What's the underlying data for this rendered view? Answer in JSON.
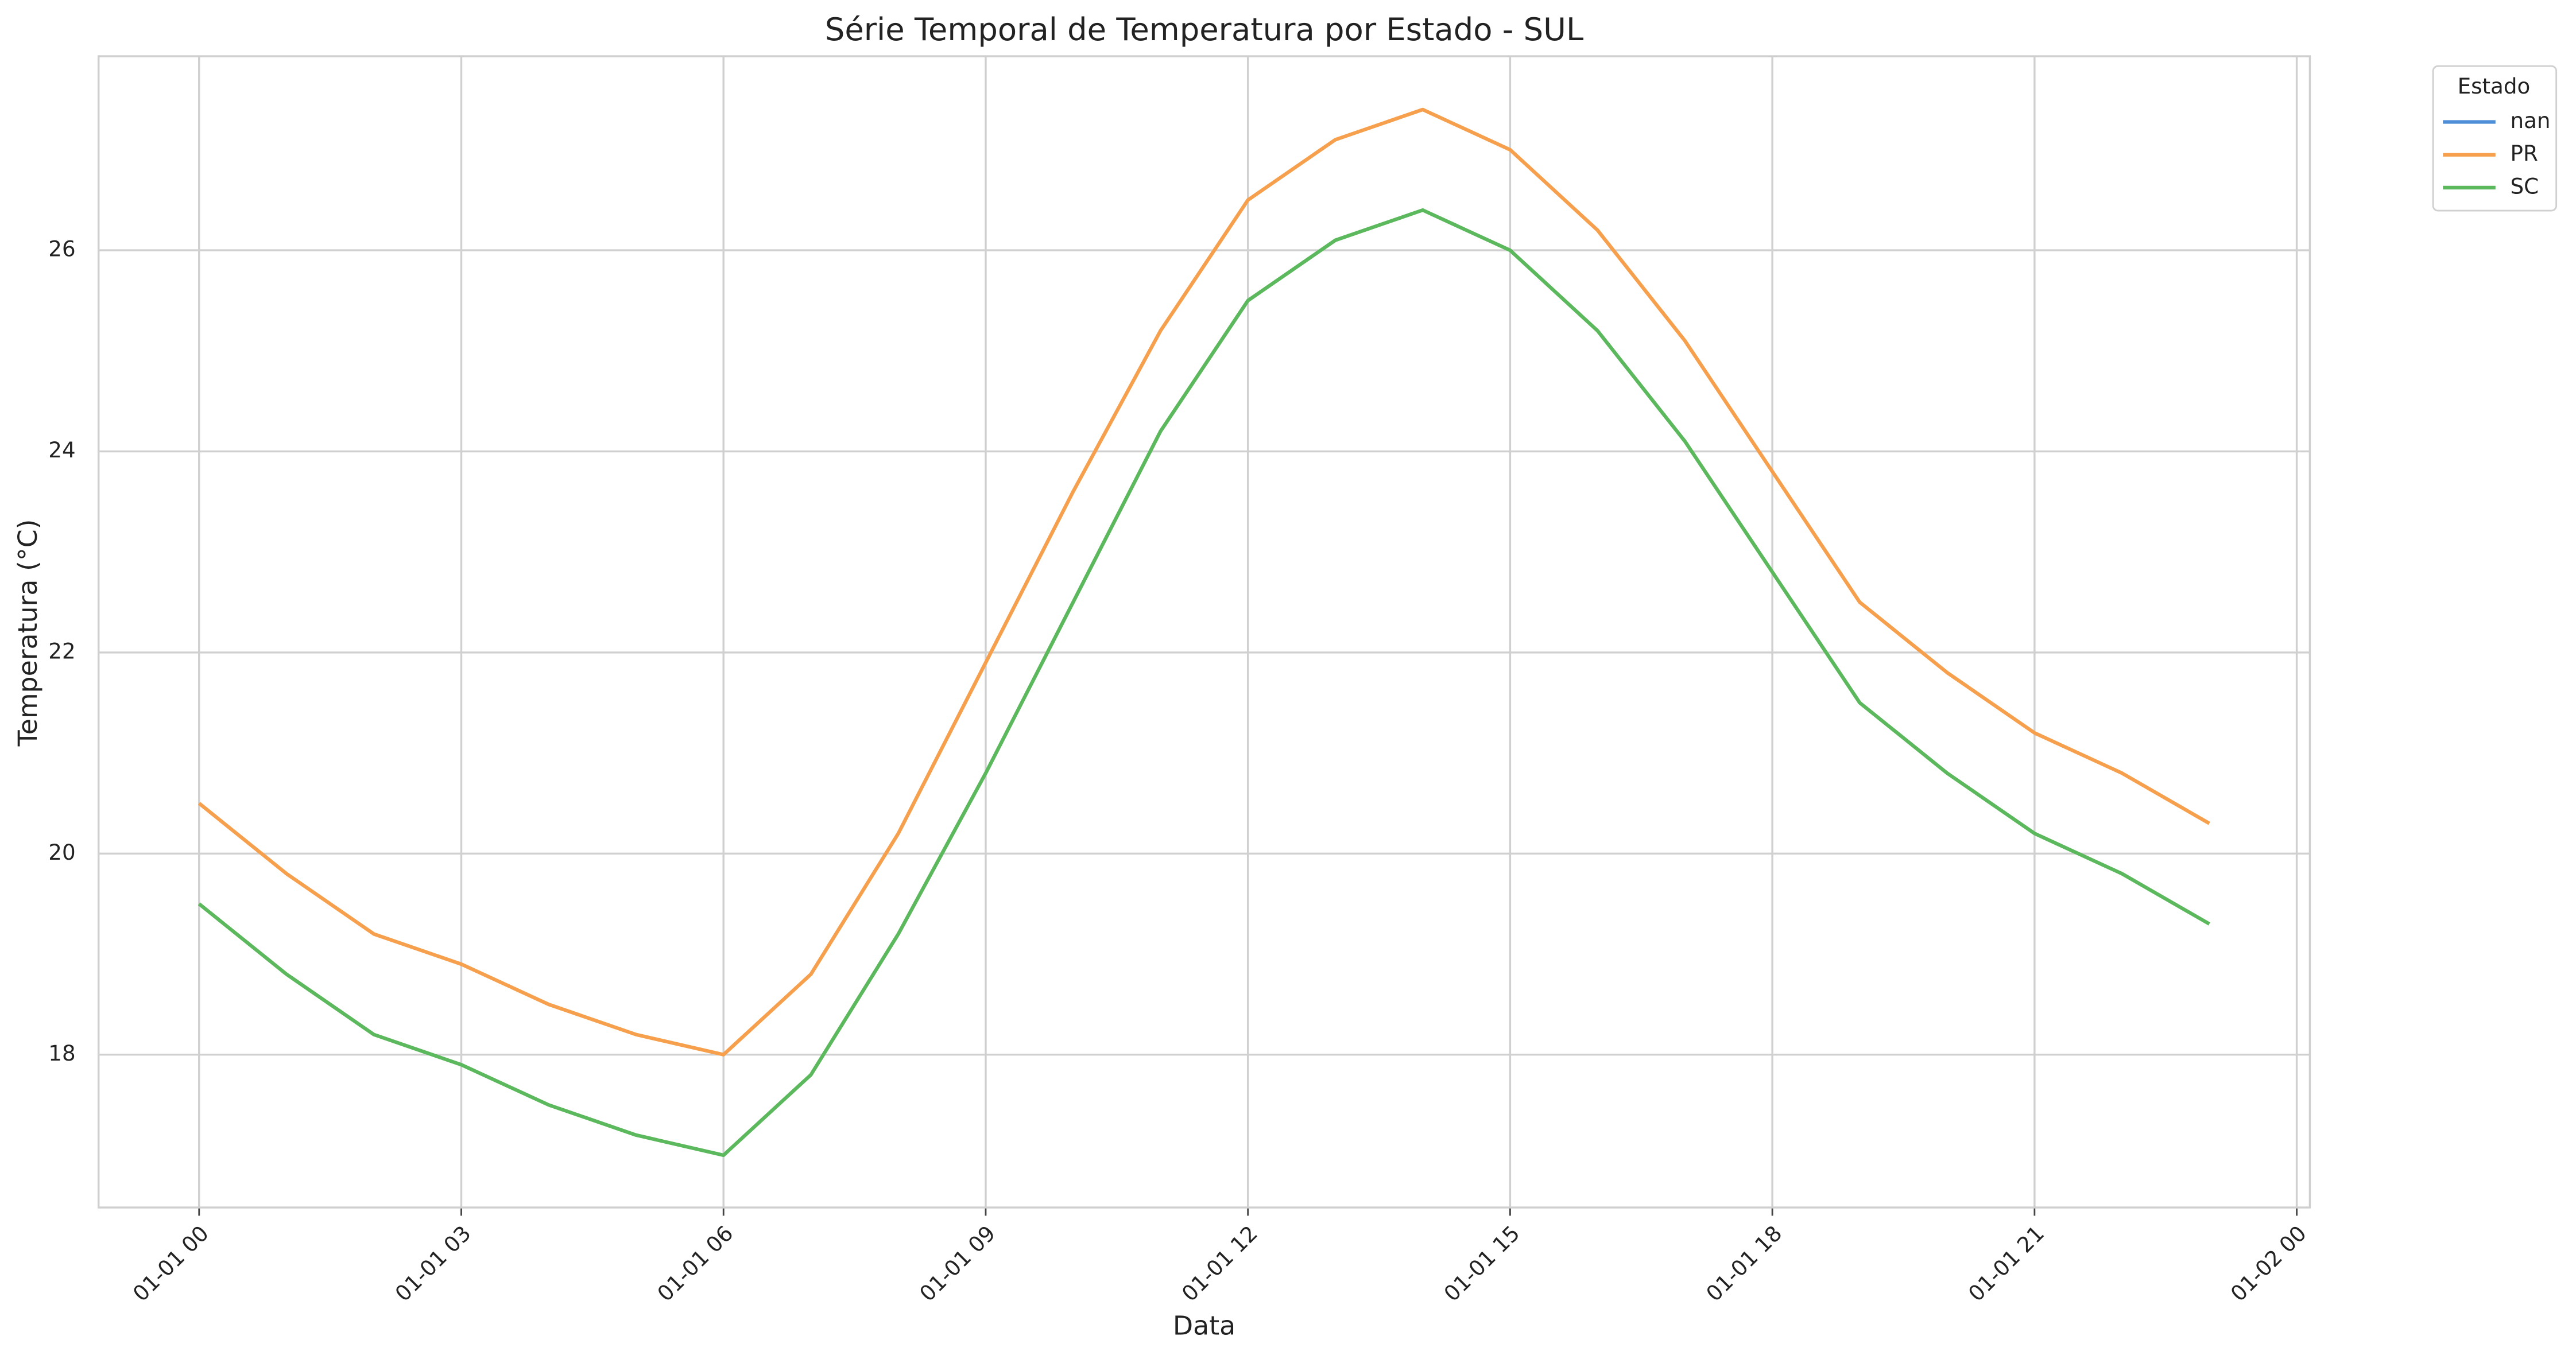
{
  "chart_data": {
    "type": "line",
    "title": "Série Temporal de Temperatura por Estado - SUL",
    "x_label": "Data",
    "y_label": "Temperatura (°C)",
    "legend_title": "Estado",
    "legend": "upper right outside",
    "x": [
      "01-01 00",
      "01-01 01",
      "01-01 02",
      "01-01 03",
      "01-01 04",
      "01-01 05",
      "01-01 06",
      "01-01 07",
      "01-01 08",
      "01-01 09",
      "01-01 10",
      "01-01 11",
      "01-01 12",
      "01-01 13",
      "01-01 14",
      "01-01 15",
      "01-01 16",
      "01-01 17",
      "01-01 18",
      "01-01 19",
      "01-01 20",
      "01-01 21",
      "01-01 22",
      "01-01 23"
    ],
    "series": [
      {
        "name": "nan",
        "color": "#4f8fd8",
        "values": [
          null,
          null,
          null,
          null,
          null,
          null,
          null,
          null,
          null,
          null,
          null,
          null,
          null,
          null,
          null,
          null,
          null,
          null,
          null,
          null,
          null,
          null,
          null,
          null
        ]
      },
      {
        "name": "PR",
        "color": "#f6a04d",
        "values": [
          20.5,
          19.8,
          19.2,
          18.9,
          18.5,
          18.2,
          18.0,
          18.8,
          20.2,
          21.9,
          23.6,
          25.2,
          26.5,
          27.1,
          27.4,
          27.0,
          26.2,
          25.1,
          23.8,
          22.5,
          21.8,
          21.2,
          20.8,
          20.3
        ]
      },
      {
        "name": "SC",
        "color": "#5cb85c",
        "values": [
          19.5,
          18.8,
          18.2,
          17.9,
          17.5,
          17.2,
          17.0,
          17.8,
          19.2,
          20.8,
          22.5,
          24.2,
          25.5,
          26.1,
          26.4,
          26.0,
          25.2,
          24.1,
          22.8,
          21.5,
          20.8,
          20.2,
          19.8,
          19.3
        ]
      }
    ],
    "xlim": [
      "01-01 00",
      "01-01 23"
    ],
    "xticks": [
      "01-01 00",
      "01-01 03",
      "01-01 06",
      "01-01 09",
      "01-01 12",
      "01-01 15",
      "01-01 18",
      "01-01 21",
      "01-02 00"
    ],
    "ylim": [
      16.48,
      27.93
    ],
    "yticks": [
      18,
      20,
      22,
      24,
      26
    ],
    "grid": true
  }
}
